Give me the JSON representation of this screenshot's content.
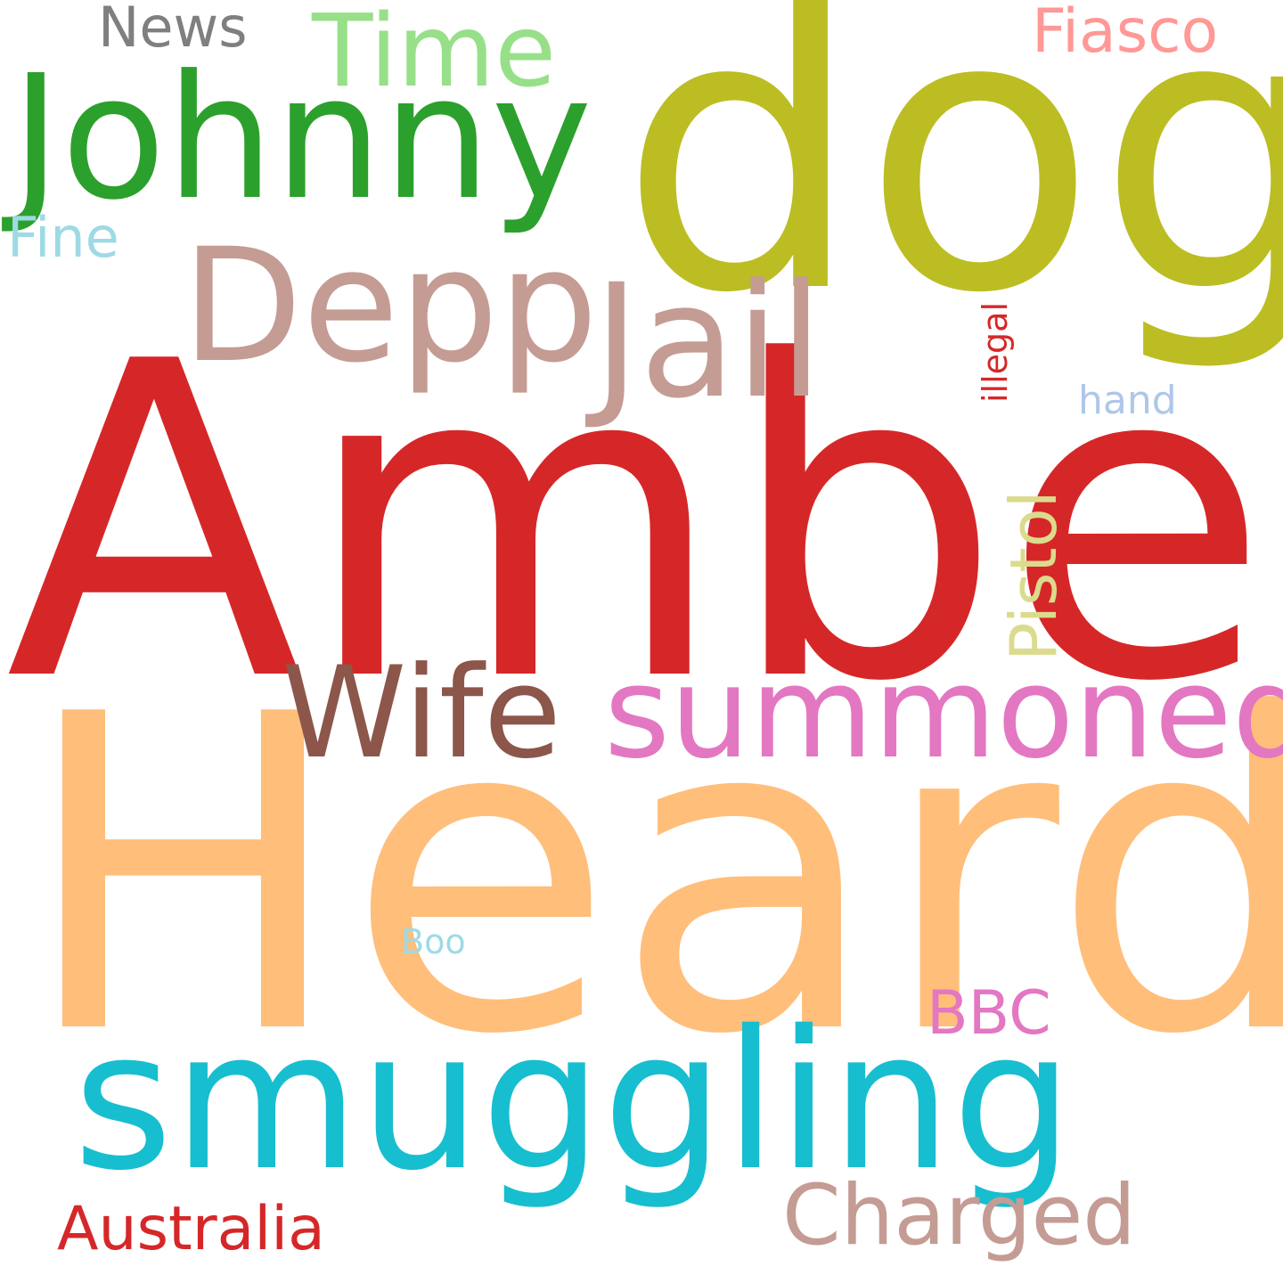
{
  "words": [
    {
      "text": "Amber",
      "color": "#d62728"
    },
    {
      "text": "Heard",
      "color": "#ffbe7a"
    },
    {
      "text": "dog",
      "color": "#bcbd22"
    },
    {
      "text": "smuggling",
      "color": "#17becf"
    },
    {
      "text": "Johnny",
      "color": "#2ca02c"
    },
    {
      "text": "Depp",
      "color": "#c49c94"
    },
    {
      "text": "Jail",
      "color": "#c49c94"
    },
    {
      "text": "summoned",
      "color": "#e377c2"
    },
    {
      "text": "Wife",
      "color": "#8c564b"
    },
    {
      "text": "Time",
      "color": "#98df8a"
    },
    {
      "text": "Charged",
      "color": "#c49c94"
    },
    {
      "text": "Pistol",
      "color": "#dbdb8d"
    },
    {
      "text": "Australia",
      "color": "#d62728"
    },
    {
      "text": "Fiasco",
      "color": "#ff9896"
    },
    {
      "text": "BBC",
      "color": "#e377c2"
    },
    {
      "text": "News",
      "color": "#7f7f7f"
    },
    {
      "text": "Fine",
      "color": "#9edae5"
    },
    {
      "text": "hand",
      "color": "#aec7e8"
    },
    {
      "text": "illegal",
      "color": "#d62728"
    },
    {
      "text": "Boo",
      "color": "#9edae5"
    }
  ]
}
